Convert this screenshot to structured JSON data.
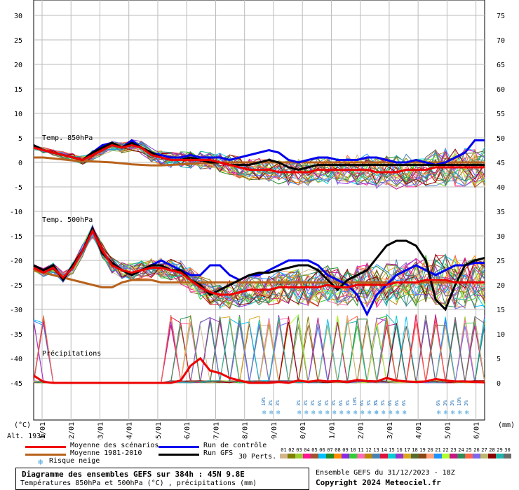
{
  "chart_data": {
    "type": "line",
    "title": "Diagramme des ensembles GEFS sur 384h : 45N 9.8E",
    "subtitle": "Températures 850hPa et 500hPa (°C) , précipitations (mm)",
    "left_axis": {
      "label": "(°C)",
      "ticks": [
        30,
        25,
        20,
        15,
        10,
        5,
        0,
        -5,
        -10,
        -15,
        -20,
        -25,
        -30,
        -35,
        -40,
        -45
      ],
      "range": [
        -45,
        30
      ]
    },
    "right_axis": {
      "label": "(mm)",
      "ticks": [
        75,
        70,
        65,
        60,
        55,
        50,
        45,
        40,
        35,
        30,
        25,
        20,
        15,
        10,
        5,
        0
      ],
      "range": [
        0,
        75
      ]
    },
    "x_ticks": [
      "01/01",
      "02/01",
      "03/01",
      "04/01",
      "05/01",
      "06/01",
      "07/01",
      "08/01",
      "09/01",
      "10/01",
      "11/01",
      "12/01",
      "13/01",
      "14/01",
      "15/01",
      "16/01"
    ],
    "altitude": "Alt. 193m",
    "section_labels": [
      "Temp. 850hPa",
      "Temp. 500hPa",
      "Précipitations"
    ],
    "t850_mean": [
      3.0,
      2.5,
      2.0,
      1.5,
      1.0,
      0.5,
      1.5,
      2.5,
      3.5,
      3.0,
      3.5,
      3.0,
      1.5,
      1.0,
      0.5,
      0.5,
      0.5,
      0.5,
      0.5,
      0.0,
      -0.5,
      -1.0,
      -1.5,
      -1.5,
      -1.5,
      -2.0,
      -2.0,
      -2.0,
      -2.0,
      -1.5,
      -1.5,
      -1.5,
      -1.5,
      -1.5,
      -1.5,
      -2.0,
      -2.0,
      -2.0,
      -1.5,
      -1.5,
      -1.5,
      -1.0,
      -1.0,
      -1.0,
      -1.0,
      -1.0,
      -1.0
    ],
    "t850_climo": [
      1.0,
      1.0,
      0.8,
      0.6,
      0.4,
      0.3,
      0.2,
      0.1,
      0.0,
      -0.2,
      -0.4,
      -0.5,
      -0.6,
      -0.6,
      -0.5,
      -0.4,
      -0.3,
      -0.2,
      -0.1,
      0.0,
      0.0,
      0.0,
      0.0,
      0.0,
      0.0,
      0.0,
      0.0,
      0.0,
      0.0,
      0.0,
      0.0,
      0.0,
      0.0,
      0.0,
      0.0,
      0.0,
      0.0,
      0.0,
      0.0,
      0.0,
      0.0,
      0.0,
      0.0,
      0.0,
      0.0,
      0.0,
      0.0
    ],
    "t850_control": [
      3.5,
      2.5,
      2.0,
      1.5,
      1.0,
      0.5,
      2.0,
      3.5,
      4.0,
      3.0,
      4.5,
      3.0,
      2.0,
      1.5,
      1.0,
      1.0,
      1.5,
      1.0,
      1.0,
      1.0,
      0.5,
      1.0,
      1.5,
      2.0,
      2.5,
      2.0,
      0.5,
      0.0,
      0.5,
      1.0,
      1.0,
      0.5,
      0.5,
      0.5,
      1.0,
      1.0,
      0.5,
      0.0,
      0.0,
      0.5,
      0.0,
      -0.5,
      0.0,
      1.0,
      2.0,
      4.5,
      4.5
    ],
    "t850_gfs": [
      3.5,
      2.5,
      2.0,
      1.5,
      1.0,
      0.5,
      2.0,
      3.0,
      4.0,
      3.0,
      4.0,
      3.0,
      2.0,
      1.0,
      0.5,
      0.5,
      1.0,
      0.5,
      0.0,
      0.0,
      -0.5,
      -0.5,
      -0.5,
      0.0,
      0.5,
      0.0,
      -1.0,
      -1.5,
      -1.0,
      -0.5,
      -0.5,
      -0.5,
      -0.5,
      -0.5,
      -0.5,
      -0.5,
      -0.5,
      -0.5,
      -0.5,
      -0.5,
      -0.5,
      -0.5,
      -0.5,
      -0.5,
      -0.5,
      -0.5,
      -0.5
    ],
    "t500_mean": [
      -21.5,
      -22.5,
      -21.5,
      -23.5,
      -21.5,
      -18.0,
      -14.0,
      -18.0,
      -21.0,
      -22.0,
      -22.5,
      -22.0,
      -21.5,
      -21.5,
      -22.0,
      -22.5,
      -24.0,
      -25.5,
      -26.5,
      -27.0,
      -27.0,
      -26.5,
      -26.0,
      -26.0,
      -26.0,
      -25.5,
      -25.5,
      -25.5,
      -25.5,
      -25.5,
      -25.0,
      -25.5,
      -25.5,
      -25.0,
      -25.0,
      -25.0,
      -25.0,
      -24.5,
      -24.5,
      -24.5,
      -24.0,
      -24.0,
      -24.0,
      -24.5,
      -24.5,
      -24.5,
      -24.5
    ],
    "t500_climo": [
      -22.0,
      -22.5,
      -23.0,
      -23.5,
      -24.0,
      -24.5,
      -25.0,
      -25.5,
      -25.5,
      -24.5,
      -24.0,
      -24.0,
      -24.0,
      -24.5,
      -24.5,
      -24.5,
      -24.5,
      -24.5,
      -24.5,
      -24.5,
      -24.5,
      -24.5,
      -24.5,
      -24.5,
      -24.5,
      -24.5,
      -24.5,
      -24.5,
      -24.5,
      -24.5,
      -24.5,
      -24.5,
      -24.5,
      -24.5,
      -24.5,
      -24.5,
      -24.5,
      -24.5,
      -24.5,
      -24.5,
      -24.5,
      -24.5,
      -24.5,
      -24.5,
      -24.5,
      -24.5,
      -24.5
    ],
    "t500_control": [
      -21.0,
      -22.0,
      -21.0,
      -24.0,
      -21.0,
      -18.0,
      -13.5,
      -18.5,
      -20.5,
      -22.0,
      -23.0,
      -22.0,
      -21.0,
      -20.0,
      -21.0,
      -22.0,
      -23.0,
      -23.0,
      -21.0,
      -21.0,
      -23.0,
      -24.0,
      -23.0,
      -23.0,
      -22.0,
      -21.0,
      -20.0,
      -20.0,
      -20.0,
      -21.0,
      -23.0,
      -24.0,
      -25.0,
      -27.0,
      -31.0,
      -27.0,
      -25.0,
      -23.0,
      -22.0,
      -21.0,
      -22.0,
      -23.0,
      -22.0,
      -21.0,
      -21.0,
      -20.5,
      -20.5
    ],
    "t500_gfs": [
      -21.0,
      -22.0,
      -21.0,
      -24.0,
      -21.0,
      -18.0,
      -13.5,
      -18.5,
      -20.5,
      -22.0,
      -23.0,
      -22.0,
      -21.0,
      -21.0,
      -22.0,
      -22.0,
      -24.0,
      -25.0,
      -27.0,
      -26.0,
      -25.0,
      -24.0,
      -23.0,
      -22.5,
      -22.5,
      -22.0,
      -21.5,
      -21.0,
      -21.0,
      -22.0,
      -24.0,
      -26.0,
      -24.0,
      -23.0,
      -22.0,
      -19.5,
      -17.0,
      -16.0,
      -16.0,
      -17.0,
      -20.0,
      -28.0,
      -30.0,
      -25.0,
      -21.0,
      -20.0,
      -19.5
    ],
    "precip_mean_mm": [
      1.5,
      0.2,
      0.0,
      0.0,
      0.0,
      0.0,
      0.0,
      0.0,
      0.0,
      0.0,
      0.0,
      0.0,
      0.0,
      0.0,
      0.0,
      0.5,
      3.5,
      5.0,
      2.5,
      2.0,
      1.0,
      0.5,
      0.0,
      0.0,
      0.0,
      0.2,
      0.0,
      0.5,
      0.2,
      0.5,
      0.3,
      0.4,
      0.2,
      0.6,
      0.4,
      0.3,
      1.0,
      0.5,
      0.3,
      0.2,
      0.3,
      0.8,
      0.5,
      0.3,
      0.3,
      0.2,
      0.1
    ],
    "snow_risk_days": [
      {
        "day": "09/01",
        "pcts": [
          "10%",
          "3%",
          "3%"
        ]
      },
      {
        "day": "10/01",
        "pcts": [
          "3%",
          "3%",
          "3%",
          "6%",
          "3%",
          "3%",
          "6%",
          "3%",
          "10%",
          "6%",
          "3%",
          "3%"
        ]
      },
      {
        "day": "13/01",
        "pcts": [
          "3%",
          "3%",
          "6%",
          "6%",
          "6%"
        ]
      },
      {
        "day": "15/01",
        "pcts": [
          "6%",
          "3%",
          "3%",
          "10%",
          "3%"
        ]
      }
    ],
    "legend": [
      {
        "label": "Moyenne des scénarios",
        "color": "#ee0000"
      },
      {
        "label": "Moyenne 1981-2010",
        "color": "#b8621b"
      },
      {
        "label": "Risque neige",
        "color": "#4aa3df"
      },
      {
        "label": "Run de contrôle",
        "color": "#0000ee"
      },
      {
        "label": "Run GFS",
        "color": "#000000"
      }
    ],
    "perturbations": {
      "label": "30 Perts.",
      "ids": [
        "01",
        "02",
        "03",
        "04",
        "05",
        "06",
        "07",
        "08",
        "09",
        "10",
        "11",
        "12",
        "13",
        "14",
        "15",
        "16",
        "17",
        "18",
        "19",
        "20",
        "21",
        "22",
        "23",
        "24",
        "25",
        "26",
        "27",
        "28",
        "29",
        "30"
      ],
      "colors": [
        "#d2b48c",
        "#808000",
        "#9acd32",
        "#ff1493",
        "#a0522d",
        "#00bfff",
        "#228b22",
        "#ff8c00",
        "#8a2be2",
        "#32cd32",
        "#ff69b4",
        "#b8860b",
        "#4682b4",
        "#dc143c",
        "#00ced1",
        "#9932cc",
        "#daa520",
        "#556b2f",
        "#8b4513",
        "#ffa07a",
        "#1e90ff",
        "#adff2f",
        "#c71585",
        "#2e8b57",
        "#ff6347",
        "#7b68ee",
        "#bdb76b",
        "#8b0000",
        "#20b2aa",
        "#696969"
      ]
    }
  },
  "footer": {
    "box_title": "Diagramme des ensembles GEFS sur 384h : 45N 9.8E",
    "box_sub": "Températures 850hPa et 500hPa (°C) , précipitations (mm)",
    "ensemble": "Ensemble GEFS du 31/12/2023 - 18Z",
    "copyright": "Copyright 2024 Meteociel.fr"
  }
}
